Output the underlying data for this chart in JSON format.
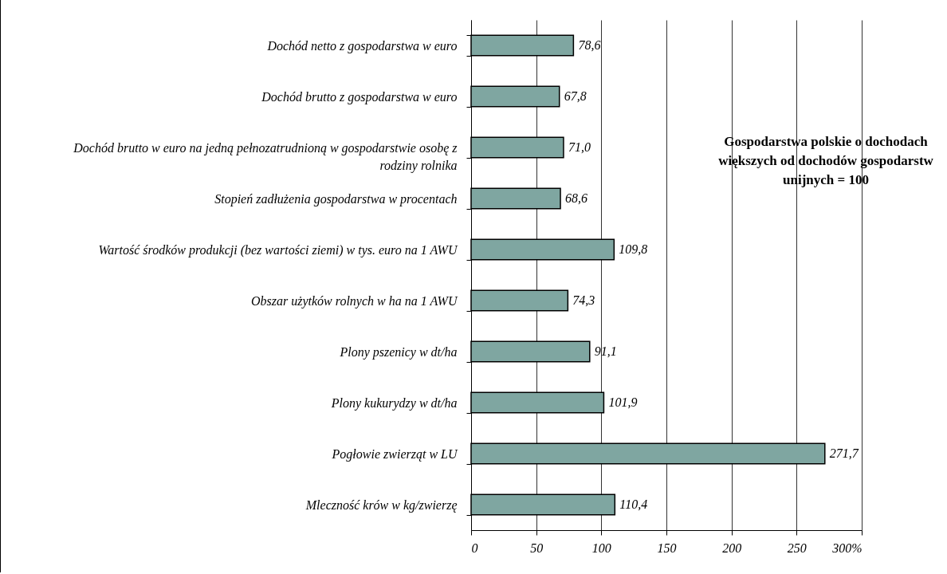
{
  "chart_data": {
    "type": "bar",
    "orientation": "horizontal",
    "categories": [
      "Dochód netto z gospodarstwa w euro",
      "Dochód brutto z gospodarstwa w euro",
      "Dochód brutto w euro na jedną pełnozatrudnioną w gospodarstwie osobę z rodziny rolnika",
      "Stopień zadłużenia gospodarstwa w procentach",
      "Wartość środków produkcji (bez wartości ziemi) w tys. euro na 1 AWU",
      "Obszar użytków rolnych w ha na 1 AWU",
      "Plony pszenicy w dt/ha",
      "Plony kukurydzy w dt/ha",
      "Pogłowie zwierząt w LU",
      "Mleczność krów w kg/zwierzę"
    ],
    "values": [
      78.6,
      67.8,
      71.0,
      68.6,
      109.8,
      74.3,
      91.1,
      101.9,
      271.7,
      110.4
    ],
    "value_labels": [
      "78,6",
      "67,8",
      "71,0",
      "68,6",
      "109,8",
      "74,3",
      "91,1",
      "101,9",
      "271,7",
      "110,4"
    ],
    "color": "#7fa6a1",
    "xlim": [
      0,
      300
    ],
    "xticks": [
      0,
      50,
      100,
      150,
      200,
      250,
      {
        "value": 300,
        "label": "300%"
      }
    ],
    "grid": "x",
    "annotations": [
      "Gospodarstwa polskie o dochodach większych od dochodów gospodarstw unijnych = 100"
    ]
  }
}
